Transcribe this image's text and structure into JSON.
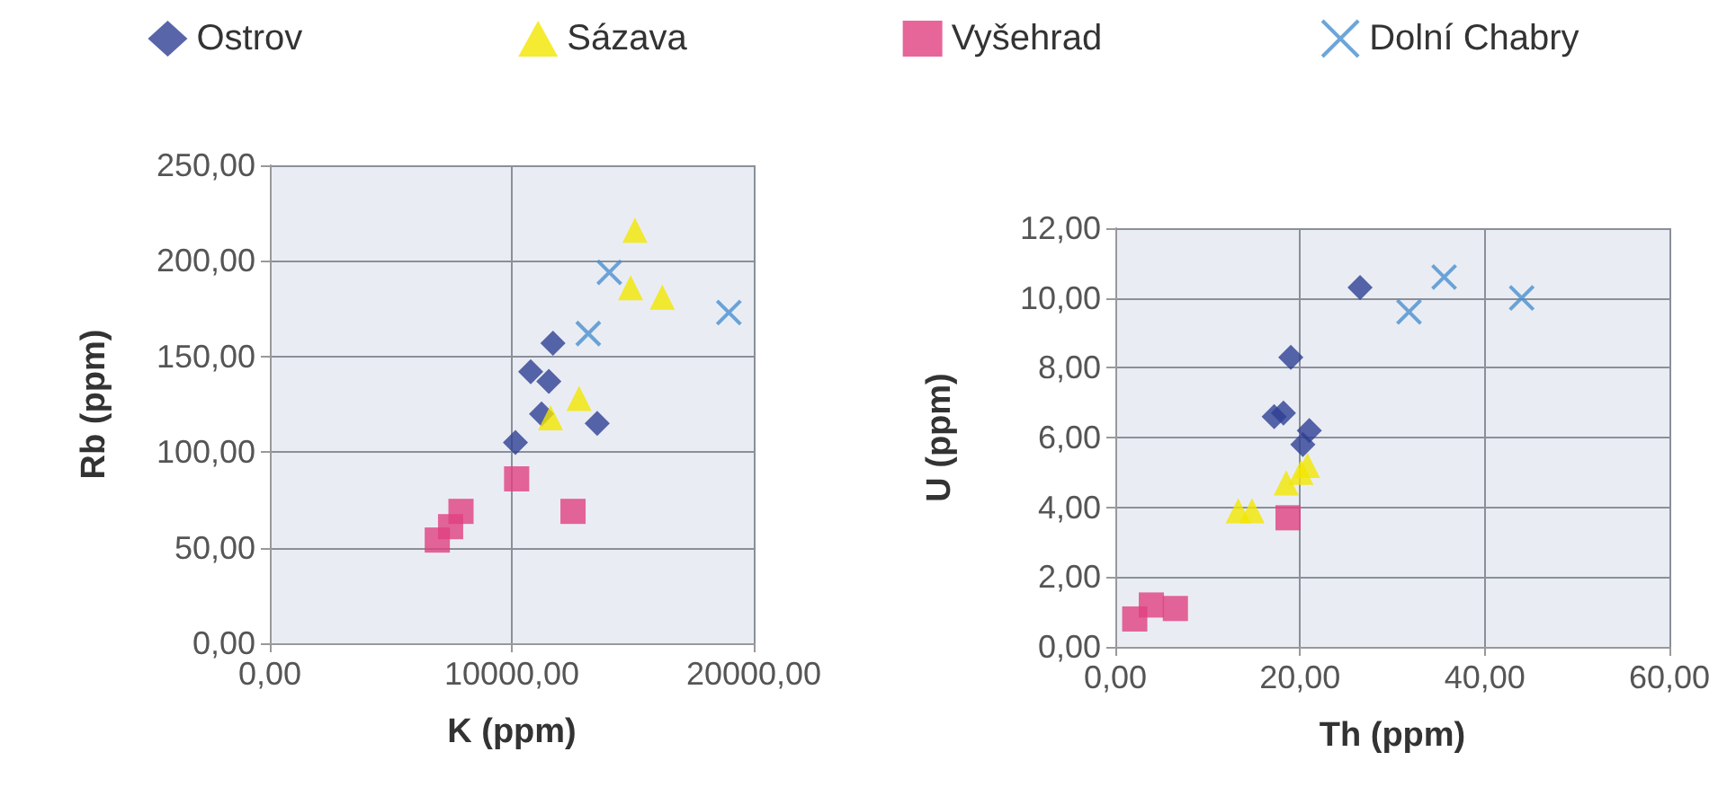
{
  "chart_data": [
    {
      "type": "scatter",
      "xlabel": "K (ppm)",
      "ylabel": "Rb (ppm)",
      "xlim": [
        0,
        20000
      ],
      "ylim": [
        0,
        250
      ],
      "xticks": [
        {
          "value": 0,
          "label": "0,00"
        },
        {
          "value": 10000,
          "label": "10000,00"
        },
        {
          "value": 20000,
          "label": "20000,00"
        }
      ],
      "yticks": [
        {
          "value": 0,
          "label": "0,00"
        },
        {
          "value": 50,
          "label": "50,00"
        },
        {
          "value": 100,
          "label": "100,00"
        },
        {
          "value": 150,
          "label": "150,00"
        },
        {
          "value": 200,
          "label": "200,00"
        },
        {
          "value": 250,
          "label": "250,00"
        }
      ],
      "grid": true,
      "legend": "top",
      "series": [
        {
          "name": "Ostrov",
          "color": "#2e3f94",
          "marker": "diamond",
          "x": [
            11700,
            10780,
            11530,
            11230,
            13530,
            10150
          ],
          "values": [
            157,
            142,
            137,
            120,
            115,
            105
          ]
        },
        {
          "name": "Sázava",
          "color": "#f2e600",
          "marker": "triangle",
          "x": [
            15090,
            14910,
            16220,
            12780,
            11600
          ],
          "values": [
            216,
            186,
            181,
            128,
            118
          ]
        },
        {
          "name": "Vyšehrad",
          "color": "#e0407f",
          "marker": "square",
          "x": [
            10200,
            12530,
            7900,
            7470,
            6920
          ],
          "values": [
            86,
            69,
            69,
            61,
            54
          ]
        },
        {
          "name": "Dolní Chabry",
          "color": "#4a8fd0",
          "marker": "cross",
          "x": [
            14030,
            13160,
            18970
          ],
          "values": [
            194,
            162,
            173
          ]
        }
      ]
    },
    {
      "type": "scatter",
      "xlabel": "Th (ppm)",
      "ylabel": "U (ppm)",
      "xlim": [
        0,
        60
      ],
      "ylim": [
        0,
        12
      ],
      "xticks": [
        {
          "value": 0,
          "label": "0,00"
        },
        {
          "value": 20,
          "label": "20,00"
        },
        {
          "value": 40,
          "label": "40,00"
        },
        {
          "value": 60,
          "label": "60,00"
        }
      ],
      "yticks": [
        {
          "value": 0,
          "label": "0,00"
        },
        {
          "value": 2,
          "label": "2,00"
        },
        {
          "value": 4,
          "label": "4,00"
        },
        {
          "value": 6,
          "label": "6,00"
        },
        {
          "value": 8,
          "label": "8,00"
        },
        {
          "value": 10,
          "label": "10,00"
        },
        {
          "value": 12,
          "label": "12,00"
        }
      ],
      "grid": true,
      "series": [
        {
          "color": "#2e3f94",
          "marker": "diamond",
          "x": [
            26.5,
            19.0,
            17.2,
            18.2,
            21.0,
            20.3
          ],
          "values": [
            10.3,
            8.3,
            6.6,
            6.7,
            6.2,
            5.8
          ]
        },
        {
          "color": "#f2e600",
          "marker": "triangle",
          "x": [
            13.3,
            14.8,
            18.5,
            20.8,
            20.1
          ],
          "values": [
            3.9,
            3.9,
            4.7,
            5.2,
            5.0
          ]
        },
        {
          "color": "#e0407f",
          "marker": "square",
          "x": [
            18.7,
            2.1,
            3.9,
            6.5
          ],
          "values": [
            3.7,
            0.8,
            1.2,
            1.1
          ]
        },
        {
          "color": "#4a8fd0",
          "marker": "cross",
          "x": [
            31.8,
            35.6,
            44.0
          ],
          "values": [
            9.6,
            10.6,
            10.0
          ]
        }
      ]
    }
  ]
}
